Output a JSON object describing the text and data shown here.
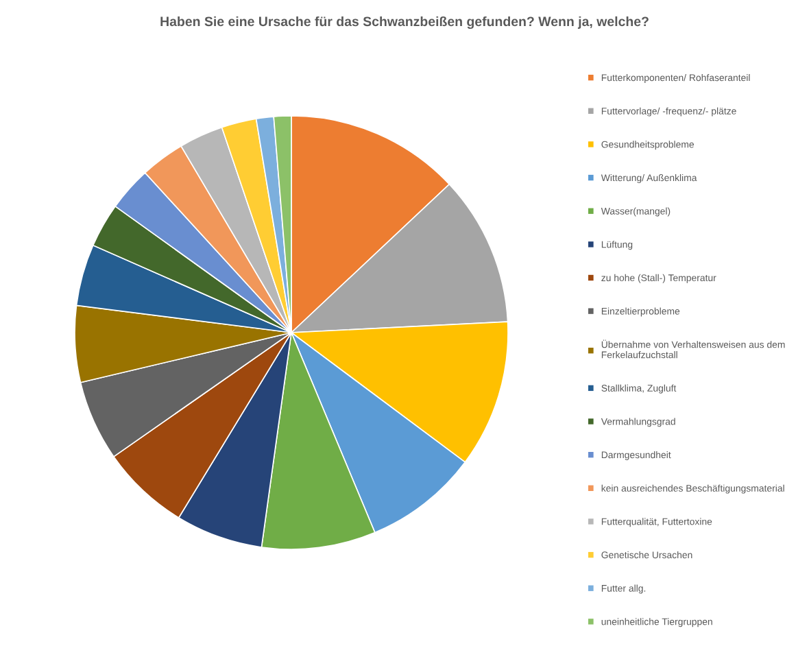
{
  "chart_data": {
    "type": "pie",
    "title": "Haben Sie eine Ursache für das Schwanzbeißen gefunden? Wenn ja, welche?",
    "categories": [
      "Futterkomponenten/ Rohfaseranteil",
      "Futtervorlage/ -frequenz/- plätze",
      "Gesundheitsprobleme",
      "Witterung/ Außenklima",
      "Wasser(mangel)",
      "Lüftung",
      "zu hohe (Stall-) Temperatur",
      "Einzeltierprobleme",
      "Übernahme von Verhaltensweisen aus dem\nFerkelaufzuchstall",
      "Stallklima, Zugluft",
      "Vermahlungsgrad",
      "Darmgesundheit",
      "kein ausreichendes Beschäftigungsmaterial",
      "Futterqualität, Futtertoxine",
      "Genetische Ursachen",
      "Futter allg.",
      "uneinheitliche Tiergruppen"
    ],
    "values": [
      13.0,
      11.2,
      11.0,
      8.5,
      8.5,
      6.5,
      6.6,
      6.0,
      5.7,
      4.6,
      3.3,
      3.3,
      3.3,
      3.3,
      2.6,
      1.3,
      1.3
    ],
    "colors": [
      "#ed7d31",
      "#a5a5a5",
      "#ffc000",
      "#5b9bd5",
      "#70ad47",
      "#264478",
      "#9e480e",
      "#636363",
      "#997300",
      "#255e91",
      "#43682b",
      "#698ed0",
      "#f1975a",
      "#b7b7b7",
      "#ffcd33",
      "#7cafdd",
      "#8cc168"
    ],
    "legend": "right"
  }
}
